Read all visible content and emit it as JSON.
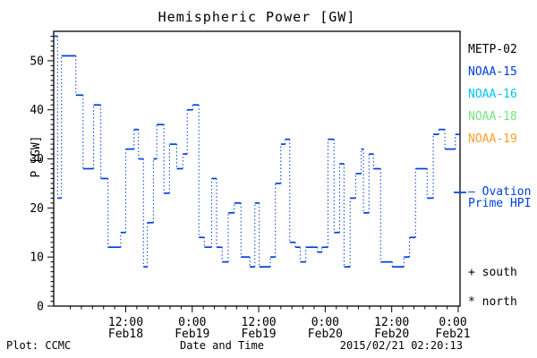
{
  "title": "Hemispheric Power [GW]",
  "footer": {
    "left": "Plot: CCMC",
    "center": "Date and Time",
    "right": "2015/02/21 02:20:13"
  },
  "legend": {
    "position": "right-outside",
    "satellites": [
      {
        "label": "METP-02",
        "color": "#000000"
      },
      {
        "label": "NOAA-15",
        "color": "#0040dd"
      },
      {
        "label": "NOAA-16",
        "color": "#00c4f4"
      },
      {
        "label": "NOAA-18",
        "color": "#74e682"
      },
      {
        "label": "NOAA-19",
        "color": "#ffa028"
      }
    ],
    "ovation": {
      "line1": "— Ovation",
      "line2": "Prime HPI",
      "color": "#0040dd"
    },
    "markers": [
      {
        "text": "+ south"
      },
      {
        "text": "* north"
      }
    ]
  },
  "chart_data": {
    "type": "line",
    "style": "steps-post",
    "title": "Hemispheric Power [GW]",
    "xlabel": "Date and Time",
    "ylabel": "P [GW]",
    "ylim": [
      0,
      56
    ],
    "y_major_tick_interval": 10,
    "y_minor_tick_interval": 1,
    "x_axis_start": "Feb17 23:00",
    "xlim_hours": [
      0,
      73.33
    ],
    "x_minor_tick_interval_hours": 2,
    "x_major_ticks": [
      {
        "h": 13,
        "time": "12:00",
        "date": "Feb18"
      },
      {
        "h": 25,
        "time": "0:00",
        "date": "Feb19"
      },
      {
        "h": 37,
        "time": "12:00",
        "date": "Feb19"
      },
      {
        "h": 49,
        "time": "0:00",
        "date": "Feb20"
      },
      {
        "h": 61,
        "time": "12:00",
        "date": "Feb20"
      },
      {
        "h": 73,
        "time": "0:00",
        "date": "Feb21"
      }
    ],
    "grid": false,
    "series": [
      {
        "name": "Ovation Prime HPI",
        "color": "#0040dd",
        "line_style": "solid-horizontal-dotted-vertical-steps",
        "steps_hours_gw": [
          [
            0.0,
            55
          ],
          [
            0.7,
            22
          ],
          [
            1.4,
            51
          ],
          [
            4.0,
            43
          ],
          [
            5.3,
            28
          ],
          [
            7.2,
            41
          ],
          [
            8.5,
            26
          ],
          [
            9.8,
            12
          ],
          [
            12.1,
            15
          ],
          [
            13.0,
            32
          ],
          [
            14.5,
            36
          ],
          [
            15.3,
            30
          ],
          [
            16.2,
            8
          ],
          [
            16.9,
            17
          ],
          [
            18.0,
            30
          ],
          [
            18.6,
            37
          ],
          [
            19.9,
            23
          ],
          [
            20.9,
            33
          ],
          [
            22.2,
            28
          ],
          [
            23.3,
            31
          ],
          [
            24.1,
            40
          ],
          [
            25.1,
            41
          ],
          [
            26.2,
            14
          ],
          [
            27.2,
            12
          ],
          [
            28.5,
            26
          ],
          [
            29.4,
            12
          ],
          [
            30.4,
            9
          ],
          [
            31.5,
            19
          ],
          [
            32.6,
            21
          ],
          [
            33.8,
            10
          ],
          [
            35.4,
            8
          ],
          [
            36.3,
            21
          ],
          [
            37.1,
            8
          ],
          [
            39.1,
            10
          ],
          [
            40.0,
            25
          ],
          [
            41.0,
            33
          ],
          [
            41.8,
            34
          ],
          [
            42.6,
            13
          ],
          [
            43.6,
            12
          ],
          [
            44.5,
            9
          ],
          [
            45.5,
            12
          ],
          [
            47.6,
            11
          ],
          [
            48.4,
            12
          ],
          [
            49.5,
            34
          ],
          [
            50.6,
            15
          ],
          [
            51.6,
            29
          ],
          [
            52.4,
            8
          ],
          [
            53.5,
            22
          ],
          [
            54.5,
            27
          ],
          [
            55.5,
            32
          ],
          [
            55.9,
            19
          ],
          [
            56.9,
            31
          ],
          [
            57.7,
            28
          ],
          [
            59.0,
            9
          ],
          [
            61.1,
            8
          ],
          [
            63.2,
            10
          ],
          [
            64.2,
            14
          ],
          [
            65.3,
            28
          ],
          [
            67.4,
            22
          ],
          [
            68.5,
            35
          ],
          [
            69.5,
            36
          ],
          [
            70.6,
            32
          ],
          [
            72.5,
            35
          ]
        ]
      }
    ]
  }
}
